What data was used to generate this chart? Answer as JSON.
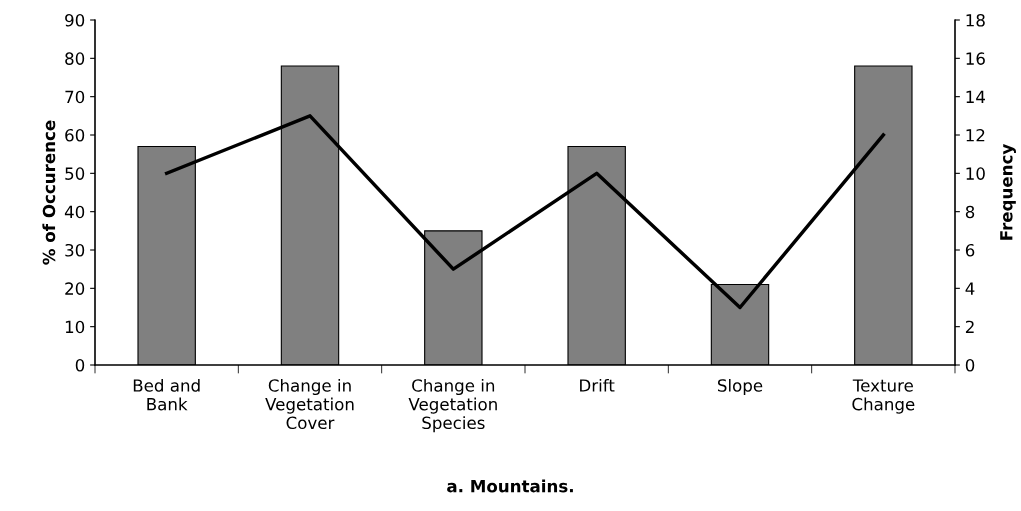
{
  "chart_data": {
    "type": "bar",
    "title": "a. Mountains.",
    "ylabel": "% of Occurence",
    "y2label": "Frequency",
    "categories": [
      "Bed and\nBank",
      "Change in\nVegetation\nCover",
      "Change in\nVegetation\nSpecies",
      "Drift",
      "Slope",
      "Texture\nChange"
    ],
    "series": [
      {
        "color": "#808080",
        "values": [
          57,
          78,
          35,
          57,
          21,
          78
        ]
      },
      {
        "type": "line",
        "axis": "y2",
        "color": "#000000",
        "marker": "none",
        "line_style": "solid",
        "values": [
          10,
          13,
          5,
          10,
          3,
          12
        ]
      }
    ],
    "ylim": [
      0,
      90
    ],
    "yticks": [
      0,
      10,
      20,
      30,
      40,
      50,
      60,
      70,
      80,
      90
    ],
    "y2lim": [
      0,
      18
    ],
    "y2ticks": [
      0,
      2,
      4,
      6,
      8,
      10,
      12,
      14,
      16,
      18
    ],
    "grid": false,
    "legend": false
  }
}
